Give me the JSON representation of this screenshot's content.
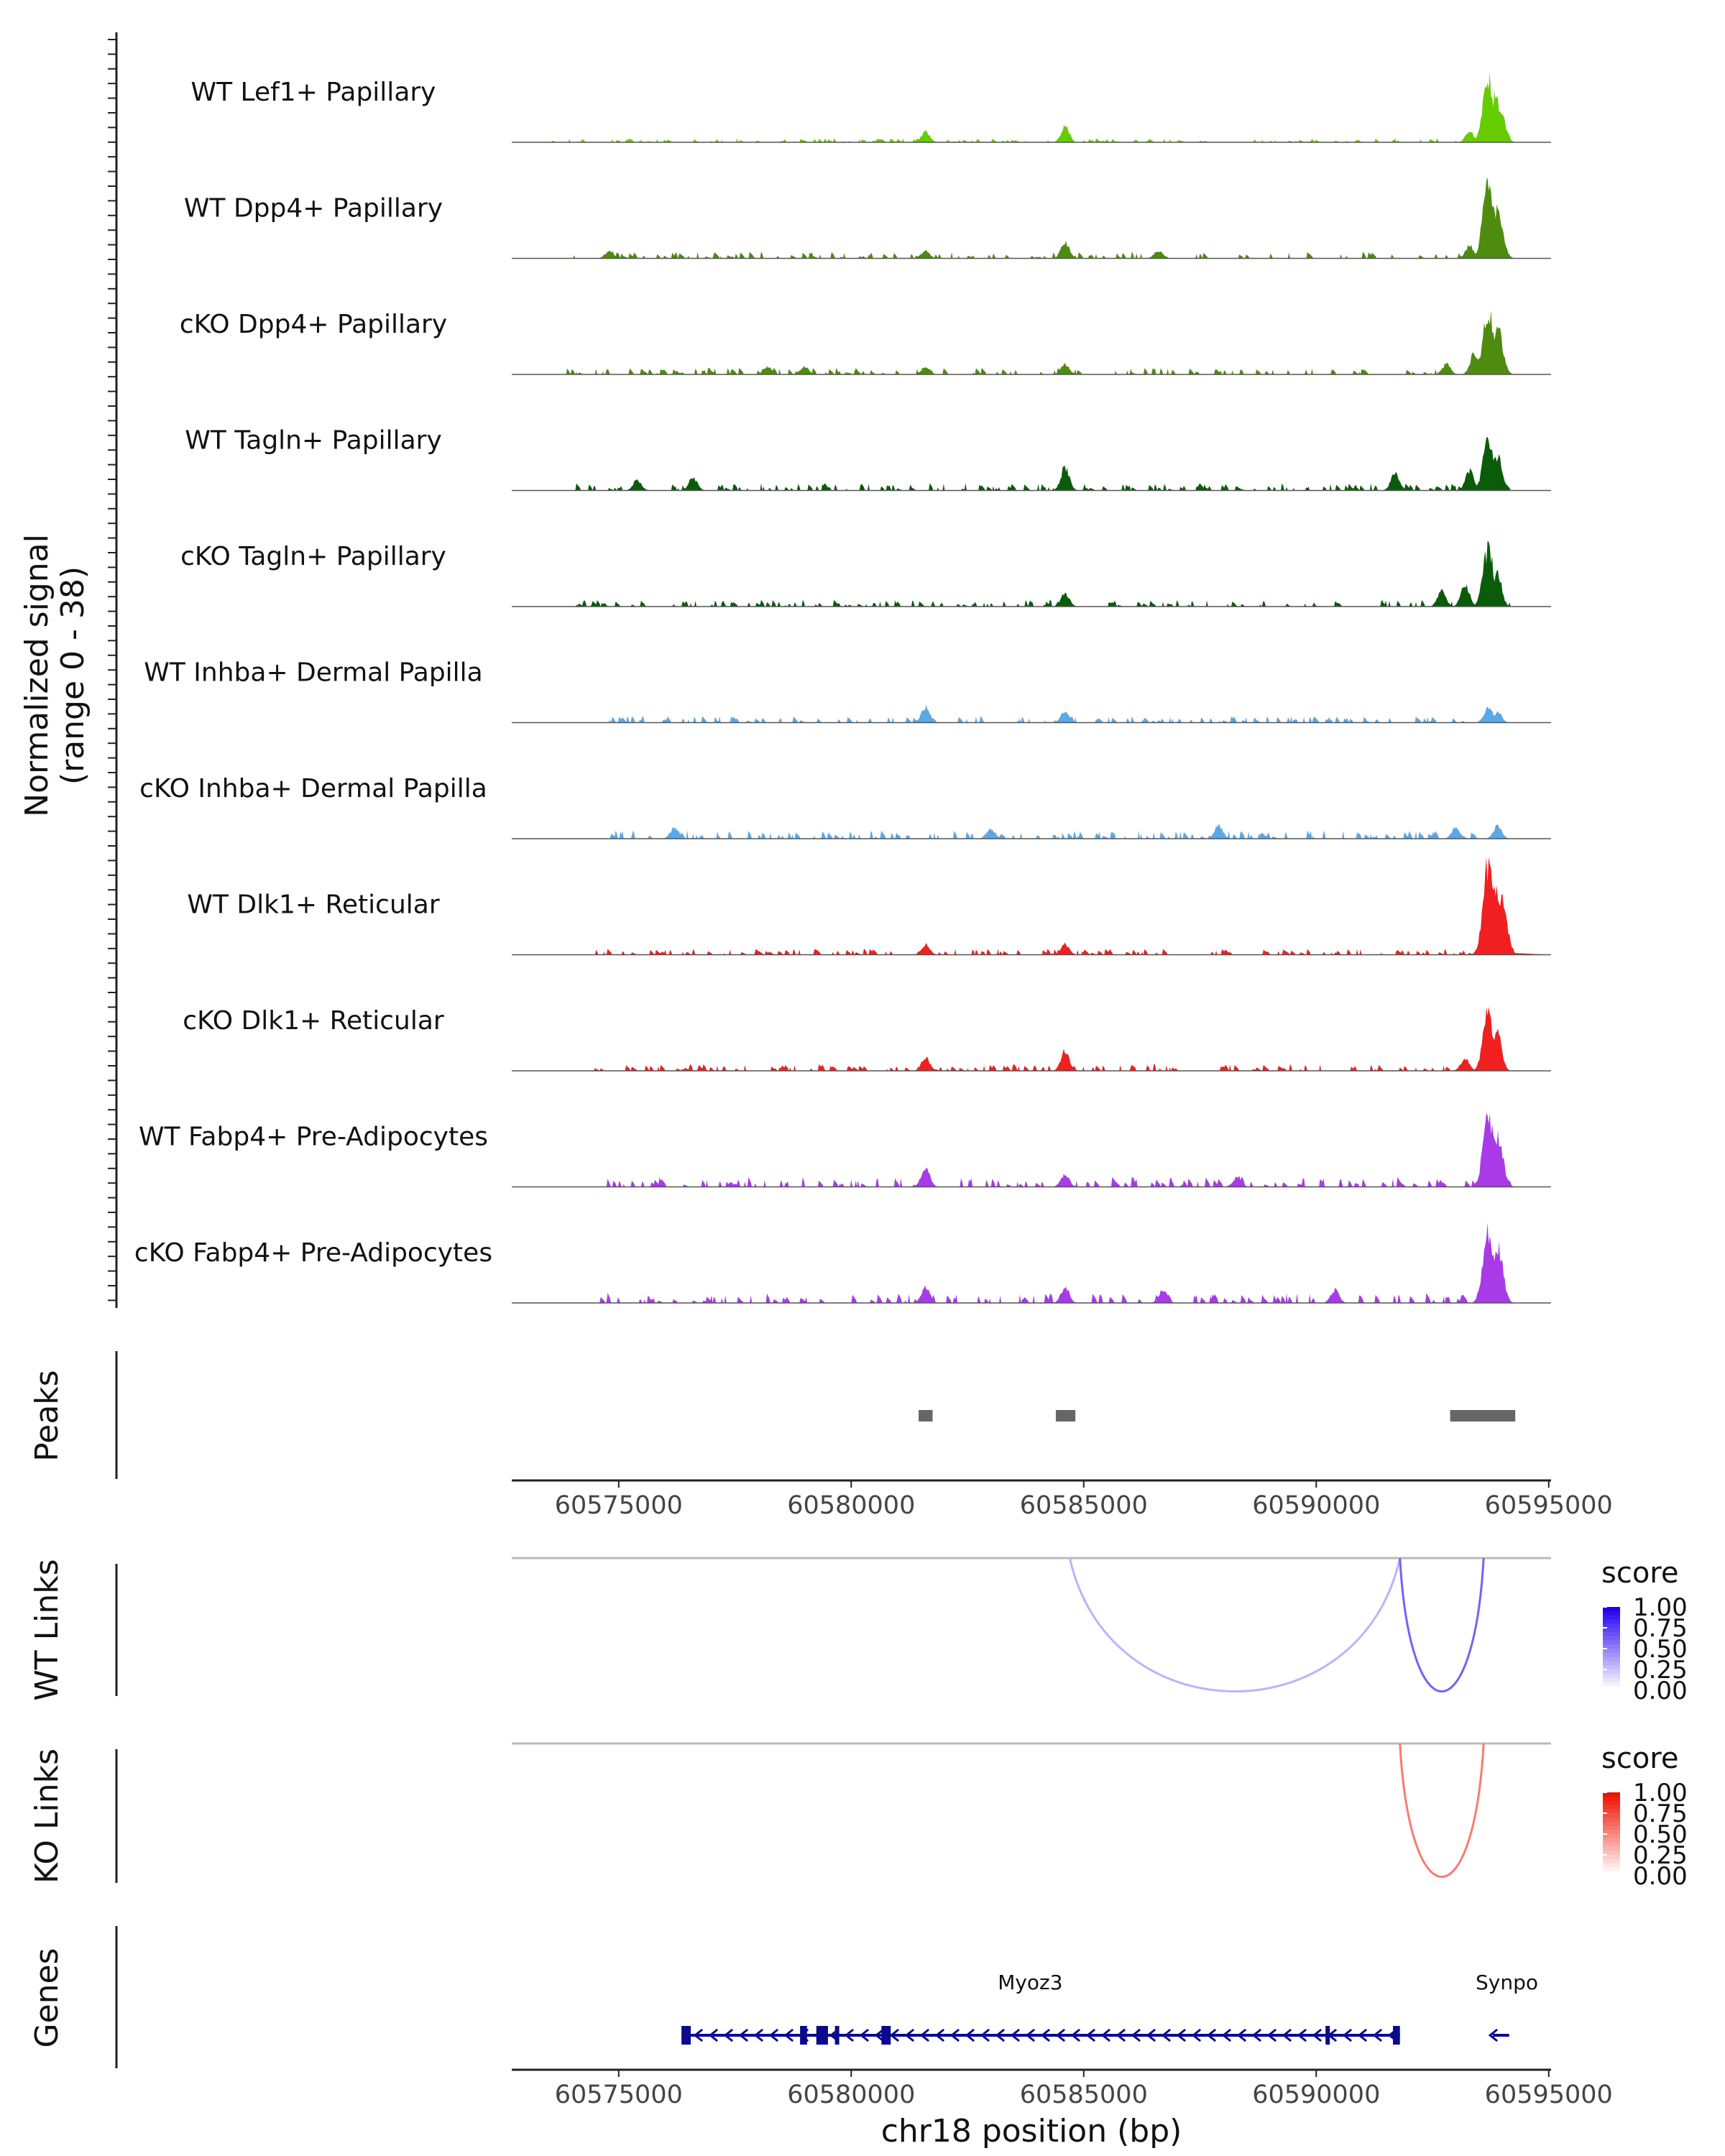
{
  "chart_data": {
    "type": "coverage-track",
    "region": {
      "chrom": "chr18",
      "xlim": [
        60572700,
        60595050
      ]
    },
    "coverage": {
      "ylabel_line1": "Normalized signal",
      "ylabel_line2": "(range 0 - 38)",
      "ylim": [
        0,
        38
      ],
      "tracks": [
        {
          "name": "WT Lef1+ Papillary",
          "color": "#66cc00",
          "peaks": [
            [
              60581600,
              4
            ],
            [
              60584600,
              6
            ],
            [
              60593300,
              4
            ],
            [
              60593700,
              25
            ],
            [
              60593850,
              18
            ],
            [
              60594000,
              10
            ]
          ],
          "noise": [
            60573500,
            60594200,
            1.2,
            11
          ]
        },
        {
          "name": "WT Dpp4+ Papillary",
          "color": "#4d8c0f",
          "peaks": [
            [
              60574800,
              3
            ],
            [
              60581600,
              3
            ],
            [
              60584600,
              6
            ],
            [
              60586600,
              3
            ],
            [
              60593300,
              5
            ],
            [
              60593700,
              32
            ],
            [
              60593900,
              20
            ]
          ],
          "noise": [
            60574000,
            60594100,
            2.0,
            12
          ]
        },
        {
          "name": "cKO Dpp4+ Papillary",
          "color": "#4d8c0f",
          "peaks": [
            [
              60578200,
              3
            ],
            [
              60579000,
              3
            ],
            [
              60581600,
              3
            ],
            [
              60584600,
              4
            ],
            [
              60592800,
              4
            ],
            [
              60593400,
              8
            ],
            [
              60593700,
              24
            ],
            [
              60593900,
              18
            ]
          ],
          "noise": [
            60573800,
            60594200,
            2.0,
            13
          ]
        },
        {
          "name": "WT Tagln+ Papillary",
          "color": "#0a5c0a",
          "peaks": [
            [
              60575400,
              4
            ],
            [
              60576600,
              5
            ],
            [
              60584600,
              9
            ],
            [
              60591700,
              7
            ],
            [
              60593300,
              8
            ],
            [
              60593700,
              20
            ],
            [
              60593900,
              14
            ]
          ],
          "noise": [
            60574000,
            60594100,
            2.2,
            14
          ]
        },
        {
          "name": "cKO Tagln+ Papillary",
          "color": "#0a5c0a",
          "peaks": [
            [
              60584600,
              5
            ],
            [
              60592700,
              6
            ],
            [
              60593200,
              9
            ],
            [
              60593700,
              22
            ],
            [
              60593900,
              12
            ]
          ],
          "noise": [
            60574000,
            60594200,
            2.0,
            15
          ]
        },
        {
          "name": "WT Inhba+ Dermal Papilla",
          "color": "#5aa8e8",
          "peaks": [
            [
              60581600,
              6
            ],
            [
              60584600,
              4
            ],
            [
              60593700,
              6
            ],
            [
              60593900,
              4
            ]
          ],
          "noise": [
            60574800,
            60594100,
            2.0,
            16
          ]
        },
        {
          "name": "cKO Inhba+ Dermal Papilla",
          "color": "#5aa8e8",
          "peaks": [
            [
              60576200,
              4
            ],
            [
              60583000,
              4
            ],
            [
              60587900,
              5
            ],
            [
              60593000,
              4
            ],
            [
              60593900,
              5
            ]
          ],
          "noise": [
            60574800,
            60594000,
            2.5,
            17
          ]
        },
        {
          "name": "WT Dlk1+ Reticular",
          "color": "#f02020",
          "peaks": [
            [
              60581600,
              4
            ],
            [
              60584600,
              4
            ],
            [
              60593700,
              35
            ],
            [
              60593850,
              28
            ],
            [
              60594000,
              20
            ]
          ],
          "noise": [
            60574000,
            60594100,
            1.8,
            18
          ]
        },
        {
          "name": "cKO Dlk1+ Reticular",
          "color": "#f02020",
          "peaks": [
            [
              60581600,
              5
            ],
            [
              60584600,
              8
            ],
            [
              60593200,
              5
            ],
            [
              60593700,
              22
            ],
            [
              60593900,
              15
            ]
          ],
          "noise": [
            60574000,
            60594100,
            2.0,
            19
          ]
        },
        {
          "name": "WT Fabp4+ Pre-Adipocytes",
          "color": "#a93ae8",
          "peaks": [
            [
              60581600,
              8
            ],
            [
              60584600,
              5
            ],
            [
              60588300,
              4
            ],
            [
              60593700,
              28
            ],
            [
              60593900,
              20
            ]
          ],
          "noise": [
            60574700,
            60594200,
            3.0,
            20
          ]
        },
        {
          "name": "cKO Fabp4+ Pre-Adipocytes",
          "color": "#a93ae8",
          "peaks": [
            [
              60581600,
              6
            ],
            [
              60584600,
              6
            ],
            [
              60586700,
              5
            ],
            [
              60590400,
              5
            ],
            [
              60593700,
              28
            ],
            [
              60593900,
              22
            ]
          ],
          "noise": [
            60574400,
            60594200,
            3.0,
            21
          ]
        }
      ]
    },
    "peaks_track": {
      "label": "Peaks",
      "color": "#666666",
      "intervals": [
        [
          60581450,
          60581750
        ],
        [
          60584400,
          60584820
        ],
        [
          60592880,
          60594280
        ]
      ]
    },
    "x_axis": {
      "ticks": [
        60575000,
        60580000,
        60585000,
        60590000,
        60595000
      ],
      "tick_labels": [
        "60575000",
        "60580000",
        "60585000",
        "60590000",
        "60595000"
      ],
      "xlabel": "chr18 position (bp)"
    },
    "links": [
      {
        "label": "WT Links",
        "legend_title": "score",
        "color_high": "#2200ee",
        "legend_ticks": [
          "1.00",
          "0.75",
          "0.50",
          "0.25",
          "0.00"
        ],
        "arcs": [
          {
            "start": 60584700,
            "end": 60591800,
            "score": 0.3
          },
          {
            "start": 60591800,
            "end": 60593600,
            "score": 0.62
          }
        ]
      },
      {
        "label": "KO Links",
        "legend_title": "score",
        "color_high": "#ee1100",
        "legend_ticks": [
          "1.00",
          "0.75",
          "0.50",
          "0.25",
          "0.00"
        ],
        "arcs": [
          {
            "start": 60591800,
            "end": 60593600,
            "score": 0.55
          }
        ]
      }
    ],
    "genes_track": {
      "label": "Genes",
      "color": "#0a0a8c",
      "genes": [
        {
          "name": "Myoz3",
          "start": 60576350,
          "end": 60591800,
          "strand": "-",
          "exons": [
            [
              60576350,
              60576550
            ],
            [
              60578900,
              60579050
            ],
            [
              60579250,
              60579500
            ],
            [
              60579650,
              60579720
            ],
            [
              60580650,
              60580850
            ],
            [
              60590200,
              60590260
            ],
            [
              60591650,
              60591800
            ]
          ]
        },
        {
          "name": "Synpo",
          "start": 60593800,
          "end": 60594150,
          "strand": "-",
          "exons": []
        }
      ]
    }
  }
}
